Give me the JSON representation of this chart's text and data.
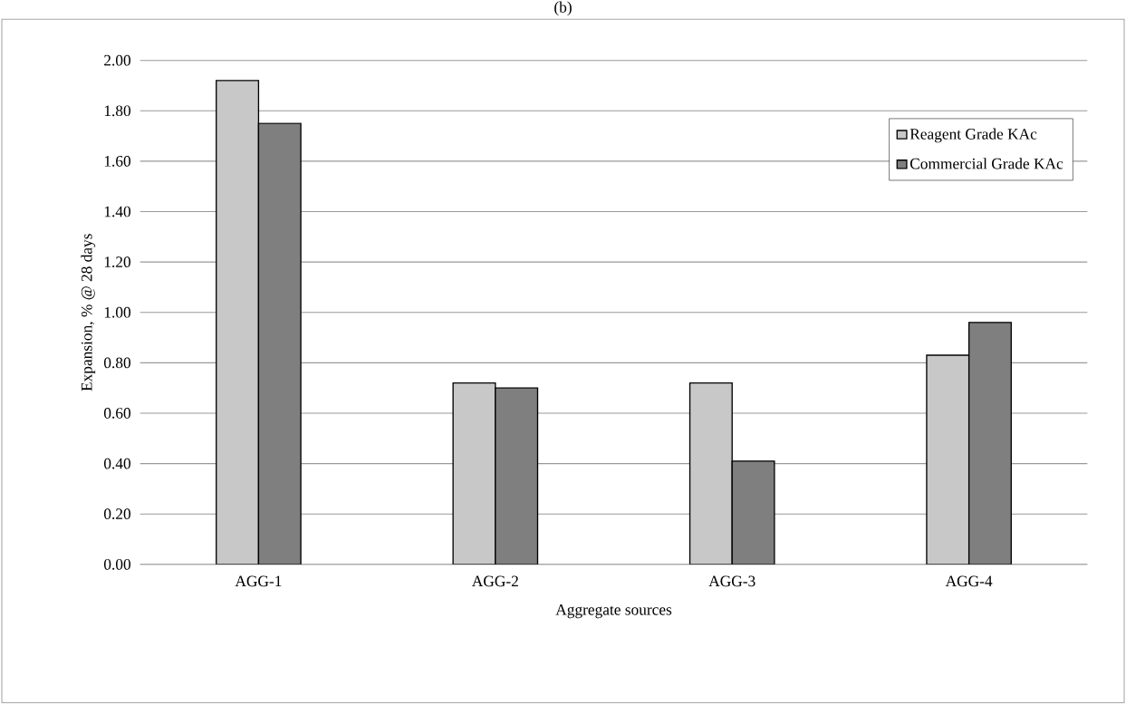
{
  "chart_data": {
    "type": "bar",
    "title": "(b)",
    "xlabel": "Aggregate sources",
    "ylabel": "Expansion, %  @ 28 days",
    "categories": [
      "AGG-1",
      "AGG-2",
      "AGG-3",
      "AGG-4"
    ],
    "series": [
      {
        "name": "Reagent Grade KAc",
        "color": "#c8c8c8",
        "values": [
          1.92,
          0.72,
          0.72,
          0.83
        ]
      },
      {
        "name": "Commercial Grade KAc",
        "color": "#7f7f7f",
        "values": [
          1.75,
          0.7,
          0.41,
          0.96
        ]
      }
    ],
    "ylim": [
      0,
      2
    ],
    "yticks": [
      {
        "value": 0,
        "label": "0.00"
      },
      {
        "value": 0.2,
        "label": "0.20"
      },
      {
        "value": 0.4,
        "label": "0.40"
      },
      {
        "value": 0.6,
        "label": "0.60"
      },
      {
        "value": 0.8,
        "label": "0.80"
      },
      {
        "value": 1.0,
        "label": "1.00"
      },
      {
        "value": 1.2,
        "label": "1.20"
      },
      {
        "value": 1.4,
        "label": "1.40"
      },
      {
        "value": 1.6,
        "label": "1.60"
      },
      {
        "value": 1.8,
        "label": "1.80"
      },
      {
        "value": 2.0,
        "label": "2.00"
      }
    ],
    "grid": "y",
    "legend": "top right"
  }
}
